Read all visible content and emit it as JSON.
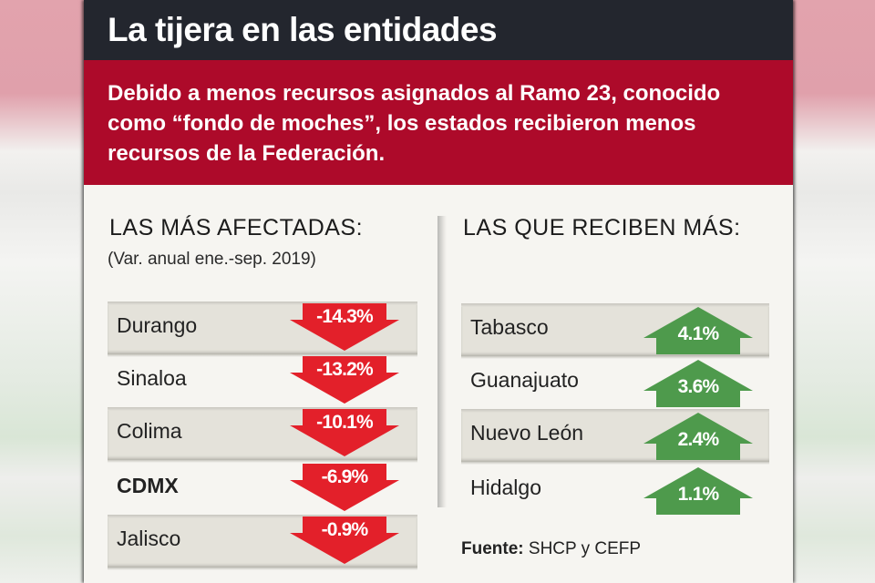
{
  "header": {
    "title": "La tijera en las entidades",
    "intro": "Debido a menos recursos asignados al Ramo 23, conocido como “fondo de moches”, los estados recibieron menos recursos de la Federación."
  },
  "colors": {
    "title_bar": "#23262e",
    "intro_bar": "#ad0a2a",
    "decrease": "#e3202a",
    "increase": "#4e9a4c",
    "row_shade": "#e4e2da",
    "card_bg": "#f6f5f1"
  },
  "chart_data": {
    "type": "table",
    "title": "La tijera en las entidades",
    "subtitle": "(Var. anual ene.-sep. 2019)",
    "unit": "%",
    "groups": [
      {
        "name": "LAS MÁS AFECTADAS:",
        "direction": "down",
        "rows": [
          {
            "state": "Durango",
            "value": -14.3,
            "label": "-14.3%"
          },
          {
            "state": "Sinaloa",
            "value": -13.2,
            "label": "-13.2%"
          },
          {
            "state": "Colima",
            "value": -10.1,
            "label": "-10.1%"
          },
          {
            "state": "CDMX",
            "value": -6.9,
            "label": "-6.9%",
            "emphasis": true
          },
          {
            "state": "Jalisco",
            "value": -0.9,
            "label": "-0.9%"
          }
        ]
      },
      {
        "name": "LAS QUE RECIBEN MÁS:",
        "direction": "up",
        "rows": [
          {
            "state": "Tabasco",
            "value": 4.1,
            "label": "4.1%"
          },
          {
            "state": "Guanajuato",
            "value": 3.6,
            "label": "3.6%"
          },
          {
            "state": "Nuevo León",
            "value": 2.4,
            "label": "2.4%"
          },
          {
            "state": "Hidalgo",
            "value": 1.1,
            "label": "1.1%"
          }
        ]
      }
    ],
    "source_label": "Fuente:",
    "source": "SHCP y CEFP"
  },
  "icons": {
    "decrease": "arrow-down-icon",
    "increase": "arrow-up-icon"
  }
}
